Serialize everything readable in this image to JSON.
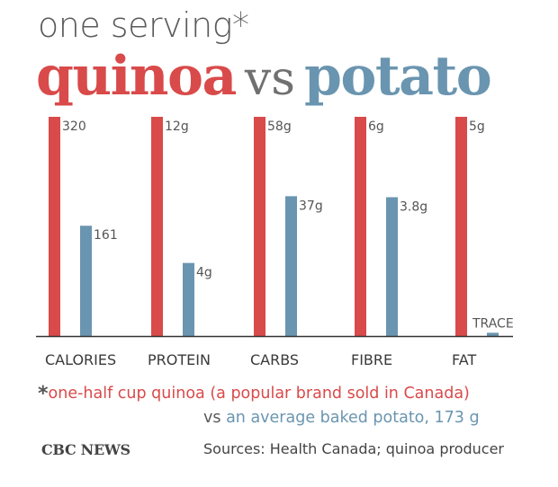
{
  "title": {
    "line1": "one serving*",
    "quinoa": "quinoa",
    "vs": "vs",
    "potato": "potato"
  },
  "colors": {
    "quinoa": "#d94a4a",
    "potato": "#6a95b0",
    "text": "#444444",
    "axis": "#333333"
  },
  "chart_data": {
    "type": "bar",
    "title": "one serving* quinoa vs potato",
    "categories": [
      "CALORIES",
      "PROTEIN",
      "CARBS",
      "FIBRE",
      "FAT"
    ],
    "series": [
      {
        "name": "quinoa",
        "values": [
          1,
          1,
          1,
          1,
          1
        ],
        "actual": [
          320,
          12,
          58,
          6,
          5
        ],
        "labels": [
          "320",
          "12g",
          "58g",
          "6g",
          "5g"
        ]
      },
      {
        "name": "potato",
        "values": [
          0.5031,
          0.3333,
          0.6379,
          0.6333,
          0.015
        ],
        "actual": [
          161,
          4,
          37,
          3.8,
          0
        ],
        "labels": [
          "161",
          "4g",
          "37g",
          "3.8g",
          "TRACE"
        ]
      }
    ],
    "note": "Each category scaled independently; quinoa bar = full height",
    "ylim": [
      0,
      1
    ],
    "xlabel": "",
    "ylabel": ""
  },
  "footnote": {
    "star": "*",
    "quinoa_text": "one-half cup quinoa (a popular brand sold in Canada)",
    "vs": "vs",
    "potato_text": "an average baked potato, 173 g"
  },
  "footer": {
    "brand": "CBC NEWS",
    "sources": "Sources: Health Canada; quinoa producer"
  }
}
